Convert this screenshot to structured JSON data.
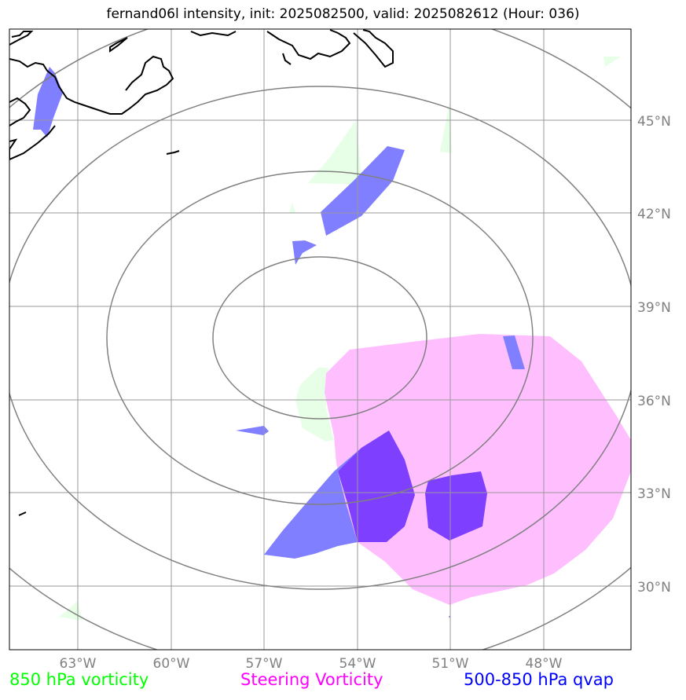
{
  "title": "fernand06l intensity, init: 2025082500, valid: 2025082612 (Hour: 036)",
  "lat_labels": [
    "45°N",
    "42°N",
    "39°N",
    "36°N",
    "33°N",
    "30°N"
  ],
  "lon_labels": [
    "63°W",
    "60°W",
    "57°W",
    "54°W",
    "51°W",
    "48°W"
  ],
  "legend": [
    {
      "label": "850 hPa vorticity",
      "color": "#00ff00"
    },
    {
      "label": "Steering Vorticity",
      "color": "#ff00ff"
    },
    {
      "label": "500-850 hPa qvap",
      "color": "#0000ff"
    }
  ],
  "colors": {
    "steering_fill": "#ffbfff",
    "qvap_fill": "#7f7fff",
    "overlap_fill": "#7f3fff",
    "vort850_fill": "#e6ffe6",
    "grid": "#999999",
    "range_rings": "#808080",
    "coastline": "#000000"
  },
  "range_rings": 4,
  "layers": [
    "850 hPa vorticity",
    "Steering Vorticity",
    "500-850 hPa qvap"
  ]
}
